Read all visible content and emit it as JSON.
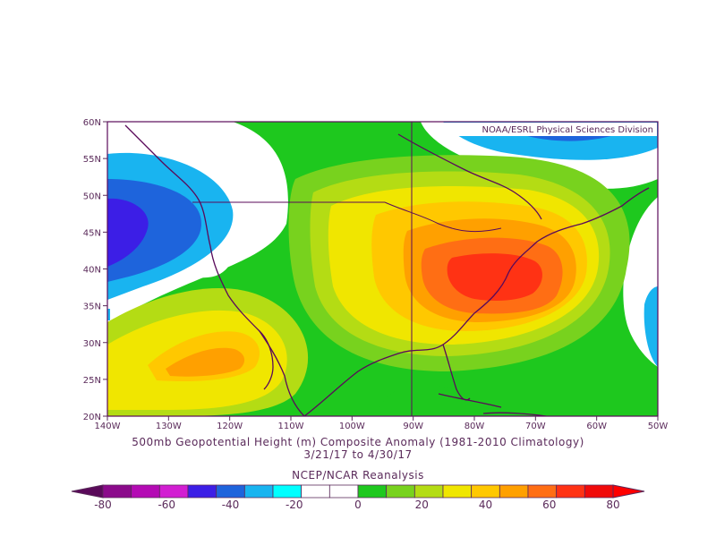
{
  "map": {
    "credit": "NOAA/ESRL Physical Sciences Division",
    "lon_labels": [
      "140W",
      "130W",
      "120W",
      "110W",
      "100W",
      "90W",
      "80W",
      "70W",
      "60W",
      "50W"
    ],
    "lat_labels": [
      "60N",
      "55N",
      "50N",
      "45N",
      "40N",
      "35N",
      "30N",
      "25N",
      "20N"
    ],
    "extent": {
      "lon_min": -140,
      "lon_max": -50,
      "lat_min": 20,
      "lat_max": 60
    }
  },
  "titles": {
    "line1": "500mb Geopotential Height (m) Composite Anomaly (1981-2010 Climatology)",
    "line2": "3/21/17 to 4/30/17",
    "line3": "NCEP/NCAR Reanalysis"
  },
  "colorbar": {
    "labels": [
      "-80",
      "-60",
      "-40",
      "-20",
      "0",
      "20",
      "40",
      "60",
      "80"
    ],
    "colors": [
      "#5a0a5a",
      "#8b0a8b",
      "#b40ab4",
      "#d21ed2",
      "#3c1ee6",
      "#1e64dc",
      "#19b4f0",
      "#00ffff",
      "#ffffff",
      "#ffffff",
      "#1ec81e",
      "#78d21e",
      "#b4dc14",
      "#f0e600",
      "#ffc800",
      "#ffa000",
      "#ff6e14",
      "#ff3214",
      "#f00a0a",
      "#ff0000"
    ]
  }
}
